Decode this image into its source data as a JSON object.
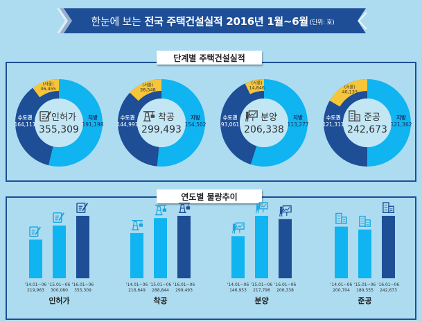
{
  "header": {
    "title_prefix": "한눈에 보는",
    "title_main": "전국 주택건설실적 2016년 1월~6월",
    "unit": "(단위: 호)"
  },
  "section1": {
    "label": "단계별 주택건설실적"
  },
  "section2": {
    "label": "연도별 물량추이"
  },
  "colors": {
    "background": "#addcf0",
    "dark_blue": "#1d4e96",
    "light_blue": "#10b4f0",
    "seoul_yellow": "#f5c53a",
    "donut_hole": "#c3e6f5"
  },
  "chart_data": [
    {
      "type": "pie",
      "title": "인허가",
      "icon": "document-pen-icon",
      "total": "355,309",
      "slices": [
        {
          "name": "지방",
          "value": 191198,
          "label": "191,198"
        },
        {
          "name": "수도권",
          "value": 164111,
          "label": "164,111"
        }
      ],
      "sub": {
        "name": "(서울)",
        "value": 36455,
        "label": "36,455"
      }
    },
    {
      "type": "pie",
      "title": "착공",
      "icon": "crane-icon",
      "total": "299,493",
      "slices": [
        {
          "name": "지방",
          "value": 154502,
          "label": "154,502"
        },
        {
          "name": "수도권",
          "value": 144991,
          "label": "144,991"
        }
      ],
      "sub": {
        "name": "(서울)",
        "value": 38548,
        "label": "38,548"
      }
    },
    {
      "type": "pie",
      "title": "분양",
      "icon": "presentation-icon",
      "total": "206,338",
      "slices": [
        {
          "name": "지방",
          "value": 113277,
          "label": "113,277"
        },
        {
          "name": "수도권",
          "value": 93061,
          "label": "93,061"
        }
      ],
      "sub": {
        "name": "(서울)",
        "value": 14846,
        "label": "14,846"
      }
    },
    {
      "type": "pie",
      "title": "준공",
      "icon": "building-icon",
      "total": "242,673",
      "slices": [
        {
          "name": "지방",
          "value": 121362,
          "label": "121,362"
        },
        {
          "name": "수도권",
          "value": 121311,
          "label": "121,311"
        }
      ],
      "sub": {
        "name": "(서울)",
        "value": 40133,
        "label": "40,133"
      }
    },
    {
      "type": "bar",
      "title": "인허가",
      "icon": "document-pen-icon",
      "categories": [
        "'14.01~06",
        "'15.01~06",
        "'16.01~06"
      ],
      "values": [
        219963,
        300080,
        355309
      ],
      "value_labels": [
        "219,963",
        "300,080",
        "355,309"
      ]
    },
    {
      "type": "bar",
      "title": "착공",
      "icon": "crane-icon",
      "categories": [
        "'14.01~06",
        "'15.01~06",
        "'16.01~06"
      ],
      "values": [
        216649,
        288844,
        299493
      ],
      "value_labels": [
        "216,649",
        "288,844",
        "299,493"
      ]
    },
    {
      "type": "bar",
      "title": "분양",
      "icon": "presentation-icon",
      "categories": [
        "'14.01~06",
        "'15.01~06",
        "'16.01~06"
      ],
      "values": [
        146953,
        217796,
        206338
      ],
      "value_labels": [
        "146,953",
        "217,796",
        "206,338"
      ]
    },
    {
      "type": "bar",
      "title": "준공",
      "icon": "building-icon",
      "categories": [
        "'14.01~06",
        "'15.01~06",
        "'16.01~06"
      ],
      "values": [
        200704,
        189555,
        242673
      ],
      "value_labels": [
        "200,704",
        "189,555",
        "242,673"
      ]
    }
  ]
}
